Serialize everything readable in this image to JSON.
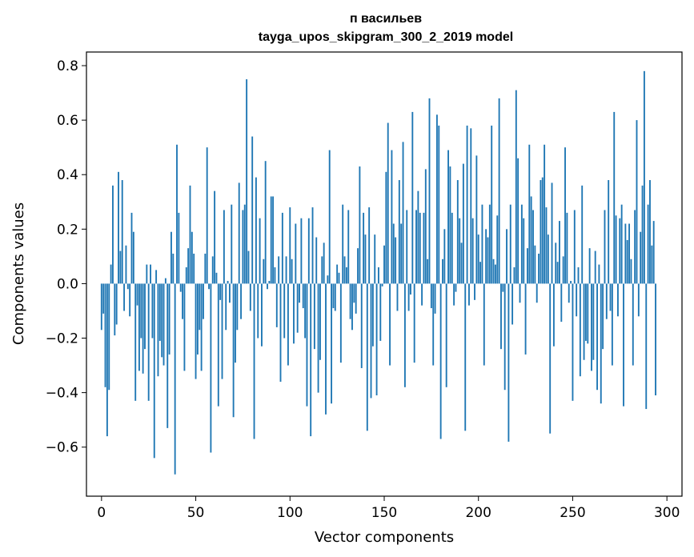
{
  "chart_data": {
    "type": "bar",
    "title": [
      "п васильев",
      "tayga_upos_skipgram_300_2_2019 model"
    ],
    "xlabel": "Vector components",
    "ylabel": "Components values",
    "xlim": [
      -8,
      308
    ],
    "ylim": [
      -0.78,
      0.85
    ],
    "xticks": [
      0,
      50,
      100,
      150,
      200,
      250,
      300
    ],
    "yticks": [
      -0.6,
      -0.4,
      -0.2,
      0.0,
      0.2,
      0.4,
      0.6,
      0.8
    ],
    "ytick_labels": [
      "−0.6",
      "−0.4",
      "−0.2",
      "0.0",
      "0.2",
      "0.4",
      "0.6",
      "0.8"
    ],
    "bar_color": "#1f77b4",
    "values": [
      -0.17,
      -0.11,
      -0.38,
      -0.56,
      -0.39,
      0.07,
      0.36,
      -0.19,
      -0.15,
      0.41,
      0.12,
      0.38,
      -0.1,
      0.14,
      -0.02,
      -0.12,
      0.26,
      0.19,
      -0.43,
      -0.08,
      -0.32,
      -0.2,
      -0.33,
      -0.24,
      0.07,
      -0.43,
      0.07,
      -0.2,
      -0.64,
      0.05,
      -0.34,
      -0.21,
      -0.27,
      -0.3,
      0.02,
      -0.53,
      -0.26,
      0.19,
      0.11,
      -0.7,
      0.51,
      0.26,
      -0.03,
      -0.13,
      -0.32,
      0.06,
      0.13,
      0.36,
      0.19,
      0.11,
      -0.35,
      -0.26,
      -0.17,
      -0.32,
      -0.13,
      0.11,
      0.5,
      -0.02,
      -0.62,
      0.1,
      0.34,
      0.04,
      -0.45,
      -0.06,
      -0.35,
      0.27,
      -0.17,
      0.01,
      -0.07,
      0.29,
      -0.49,
      -0.29,
      -0.17,
      0.37,
      -0.13,
      0.27,
      0.29,
      0.75,
      0.12,
      -0.1,
      0.54,
      -0.57,
      0.39,
      -0.2,
      0.24,
      -0.23,
      0.09,
      0.45,
      -0.02,
      0.01,
      0.32,
      0.32,
      0.06,
      -0.16,
      0.1,
      -0.36,
      0.26,
      -0.2,
      0.1,
      -0.3,
      0.28,
      0.09,
      -0.22,
      0.22,
      -0.18,
      -0.07,
      0.24,
      -0.09,
      -0.2,
      -0.45,
      0.24,
      -0.56,
      0.28,
      -0.24,
      0.17,
      -0.4,
      -0.28,
      0.1,
      0.15,
      -0.48,
      0.03,
      0.49,
      -0.44,
      -0.09,
      -0.1,
      0.07,
      0.04,
      -0.29,
      0.29,
      0.1,
      0.06,
      0.27,
      -0.13,
      -0.17,
      -0.07,
      -0.11,
      0.13,
      0.43,
      -0.31,
      0.26,
      0.18,
      -0.54,
      0.28,
      -0.42,
      -0.23,
      0.18,
      -0.41,
      0.06,
      -0.21,
      -0.01,
      0.14,
      0.41,
      0.59,
      -0.3,
      0.49,
      0.22,
      0.17,
      -0.1,
      0.38,
      0.22,
      0.52,
      -0.38,
      0.27,
      -0.1,
      -0.04,
      0.63,
      -0.29,
      0.27,
      0.34,
      0.26,
      -0.08,
      0.26,
      0.42,
      0.09,
      0.68,
      -0.09,
      -0.3,
      -0.11,
      0.62,
      0.58,
      -0.57,
      0.09,
      0.2,
      -0.38,
      0.49,
      0.43,
      0.26,
      -0.08,
      -0.03,
      0.38,
      0.24,
      0.15,
      0.44,
      -0.54,
      0.58,
      -0.08,
      0.57,
      0.24,
      -0.06,
      0.47,
      0.18,
      0.08,
      0.29,
      -0.3,
      0.2,
      0.17,
      0.29,
      0.58,
      0.09,
      0.07,
      0.25,
      0.68,
      -0.24,
      -0.03,
      -0.39,
      0.2,
      -0.58,
      0.29,
      -0.15,
      0.06,
      0.71,
      0.46,
      -0.07,
      0.29,
      0.24,
      -0.26,
      0.13,
      0.51,
      0.32,
      0.27,
      0.14,
      -0.07,
      0.11,
      0.38,
      0.39,
      0.51,
      0.28,
      0.18,
      -0.55,
      0.37,
      -0.23,
      0.15,
      0.08,
      0.23,
      -0.14,
      0.1,
      0.5,
      0.26,
      -0.07,
      0.01,
      -0.43,
      0.27,
      -0.12,
      0.06,
      -0.34,
      0.36,
      -0.28,
      -0.21,
      -0.22,
      0.13,
      -0.32,
      -0.28,
      0.12,
      -0.39,
      0.07,
      -0.44,
      -0.24,
      0.27,
      -0.13,
      0.38,
      -0.1,
      -0.3,
      0.63,
      0.25,
      -0.12,
      0.24,
      0.29,
      -0.45,
      0.22,
      0.16,
      0.22,
      0.09,
      -0.3,
      0.27,
      0.6,
      -0.12,
      0.19,
      0.36,
      0.78,
      -0.46,
      0.29,
      0.38,
      0.14,
      0.23,
      -0.41
    ]
  }
}
